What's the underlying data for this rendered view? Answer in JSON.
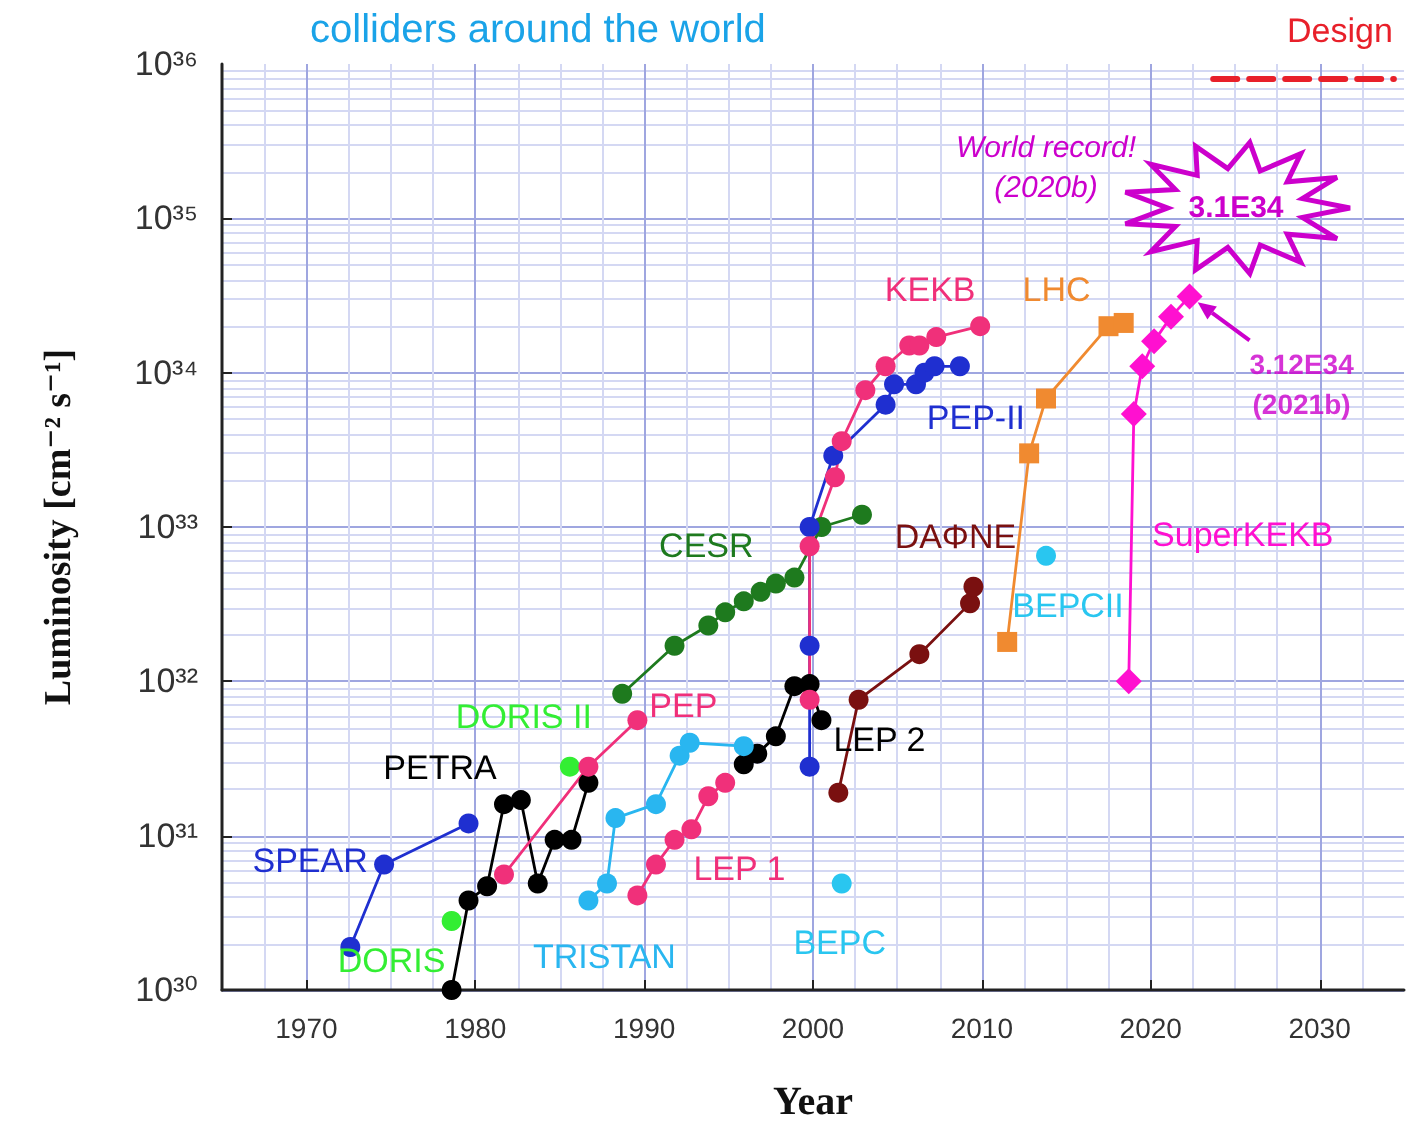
{
  "chart_data": {
    "type": "line",
    "title": "colliders around the world",
    "xlabel": "Year",
    "ylabel": "Luminosity [cm⁻² s⁻¹]",
    "log": "y",
    "grid": true,
    "marker": "circle",
    "line_style": "solid",
    "xlim": [
      1965,
      2035
    ],
    "xticks": [
      1970,
      1980,
      1990,
      2000,
      2010,
      2020,
      2030
    ],
    "ylim": [
      1e+30,
      1e+36
    ],
    "yticks": [
      {
        "value": 1e+30,
        "label": "10³⁰"
      },
      {
        "value": 1e+31,
        "label": "10³¹"
      },
      {
        "value": 1e+32,
        "label": "10³²"
      },
      {
        "value": 1e+33,
        "label": "10³³"
      },
      {
        "value": 1e+34,
        "label": "10³⁴"
      },
      {
        "value": 1e+35,
        "label": "10³⁵"
      },
      {
        "value": 1e+36,
        "label": "10³⁶"
      }
    ],
    "series": [
      {
        "name": "SPEAR",
        "color": "#1f2fd0",
        "x": [
          1972.6,
          1974.6,
          1979.6
        ],
        "values": [
          1.9e+30,
          6.5e+30,
          1.2e+31
        ]
      },
      {
        "name": "DORIS",
        "color": "#33ee33",
        "x": [
          1978.6
        ],
        "values": [
          2.8e+30
        ]
      },
      {
        "name": "DORIS II",
        "color": "#33ee33",
        "x": [
          1985.6
        ],
        "values": [
          2.8e+31
        ]
      },
      {
        "name": "PETRA",
        "color": "#000000",
        "x": [
          1978.6,
          1979.6,
          1980.7,
          1981.7,
          1982.7,
          1983.7,
          1984.7,
          1985.7,
          1986.7
        ],
        "values": [
          1e+30,
          3.8e+30,
          4.7e+30,
          1.6e+31,
          1.7e+31,
          4.9e+30,
          9.4e+30,
          9.4e+30,
          2.2e+31
        ]
      },
      {
        "name": "PEP",
        "color": "#f0307a",
        "x": [
          1981.7,
          1986.7,
          1989.6
        ],
        "values": [
          5.6e+30,
          2.8e+31,
          5.6e+31
        ]
      },
      {
        "name": "LEP 1",
        "color": "#f0307a",
        "x": [
          1989.6,
          1990.7,
          1991.8,
          1992.8,
          1993.8,
          1994.8
        ],
        "values": [
          4.1e+30,
          6.5e+30,
          9.4e+30,
          1.1e+31,
          1.8e+31,
          2.2e+31
        ]
      },
      {
        "name": "LEP 2",
        "color": "#000000",
        "x": [
          1995.9,
          1996.7,
          1997.8,
          1998.9,
          1999.8,
          2000.5
        ],
        "values": [
          2.9e+31,
          3.4e+31,
          4.4e+31,
          9.3e+31,
          9.6e+31,
          5.6e+31
        ]
      },
      {
        "name": "TRISTAN",
        "color": "#29b6f0",
        "x": [
          1986.7,
          1987.8,
          1988.3,
          1990.7,
          1992.1,
          1992.7,
          1995.9
        ],
        "values": [
          3.8e+30,
          4.9e+30,
          1.3e+31,
          1.6e+31,
          3.3e+31,
          4e+31,
          3.8e+31
        ]
      },
      {
        "name": "CESR",
        "color": "#1e7a1e",
        "x": [
          1988.7,
          1991.8,
          1993.8,
          1994.8,
          1995.9,
          1996.9,
          1997.8,
          1998.9,
          2000.5,
          2002.9
        ],
        "values": [
          8.3e+31,
          1.7e+32,
          2.3e+32,
          2.8e+32,
          3.3e+32,
          3.8e+32,
          4.3e+32,
          4.7e+32,
          1e+33,
          1.2e+33
        ]
      },
      {
        "name": "PEP-II",
        "color": "#1f2fd0",
        "x": [
          1999.8,
          1999.8,
          1999.8,
          2001.2,
          2004.3,
          2004.8,
          2006.1,
          2006.6,
          2007.2,
          2008.7
        ],
        "values": [
          2.8e+31,
          1.7e+32,
          1e+33,
          2.9e+33,
          6.2e+33,
          8.4e+33,
          8.4e+33,
          1e+34,
          1.1e+34,
          1.1e+34
        ]
      },
      {
        "name": "KEKB",
        "color": "#f0307a",
        "x": [
          1999.8,
          1999.8,
          2001.3,
          2001.7,
          2003.1,
          2004.3,
          2005.7,
          2006.3,
          2007.3,
          2009.9
        ],
        "values": [
          7.6e+31,
          7.5e+32,
          2.1e+33,
          3.6e+33,
          7.7e+33,
          1.1e+34,
          1.5e+34,
          1.5e+34,
          1.7e+34,
          2e+34
        ]
      },
      {
        "name": "DAΦNE",
        "color": "#7a1010",
        "x": [
          2001.5,
          2002.7,
          2006.3,
          2009.3,
          2009.5
        ],
        "values": [
          1.9e+31,
          7.6e+31,
          1.5e+32,
          3.2e+32,
          4.1e+32
        ]
      },
      {
        "name": "BEPC",
        "color": "#29c6f0",
        "x": [
          2001.7
        ],
        "values": [
          4.9e+30
        ]
      },
      {
        "name": "BEPCII",
        "color": "#29c6f0",
        "x": [
          2013.8
        ],
        "values": [
          6.5e+32
        ]
      },
      {
        "name": "LHC",
        "color": "#f08a30",
        "marker": "square",
        "x": [
          2011.5,
          2012.8,
          2013.8,
          2017.5,
          2018.4
        ],
        "values": [
          1.8e+32,
          3e+33,
          6.8e+33,
          2e+34,
          2.1e+34
        ]
      },
      {
        "name": "SuperKEKB",
        "color": "#ff10d0",
        "marker": "diamond",
        "x": [
          2018.7,
          2019.0,
          2019.5,
          2020.2,
          2021.2,
          2022.3
        ],
        "values": [
          1e+32,
          5.4e+33,
          1.1e+34,
          1.6e+34,
          2.3e+34,
          3.12e+34
        ]
      },
      {
        "name": "Design",
        "color": "#e8202a",
        "marker": "none",
        "line_style": "dashed",
        "x": [
          2023.7,
          2034.4
        ],
        "values": [
          8e+35,
          8e+35
        ]
      }
    ],
    "annotations": [
      "World record!\n(2020b)",
      "3.1E34",
      {
        "text": "3.12E34\n(2021b)",
        "x": 2022.3,
        "y": 3.12e+34
      }
    ]
  }
}
